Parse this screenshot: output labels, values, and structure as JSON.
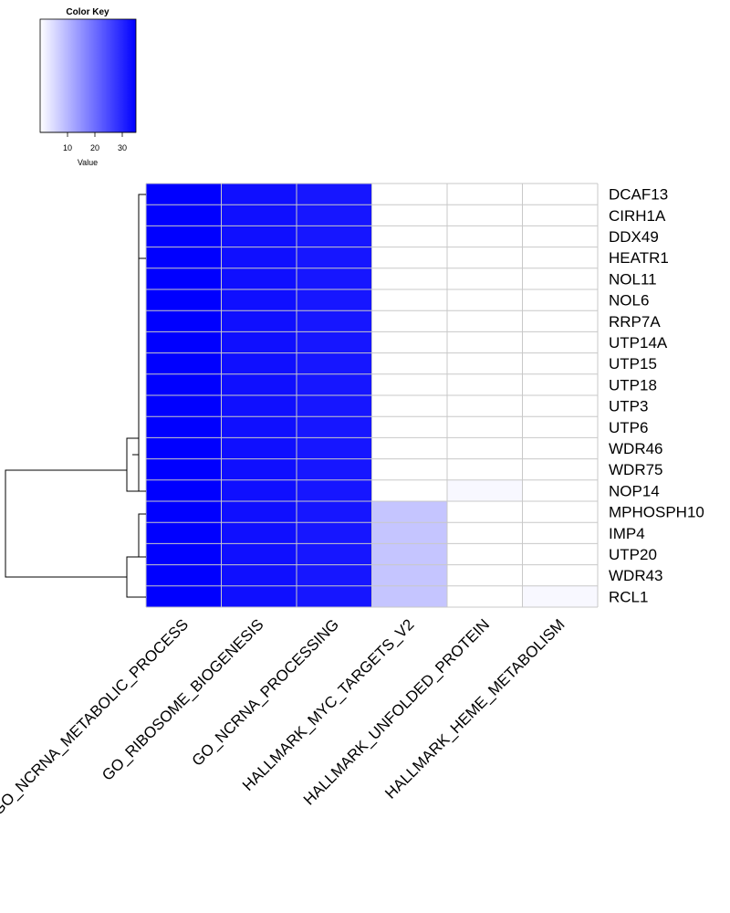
{
  "chart_data": {
    "type": "heatmap",
    "color_key": {
      "title": "Color Key",
      "xlabel": "Value",
      "ticks": [
        10,
        20,
        30
      ],
      "range": [
        0,
        35
      ],
      "low_color": "#ffffff",
      "high_color": "#0000ff"
    },
    "columns": [
      "GO_NCRNA_METABOLIC_PROCESS",
      "GO_RIBOSOME_BIOGENESIS",
      "GO_NCRNA_PROCESSING",
      "HALLMARK_MYC_TARGETS_V2",
      "HALLMARK_UNFOLDED_PROTEIN",
      "HALLMARK_HEME_METABOLISM"
    ],
    "rows": [
      "DCAF13",
      "CIRH1A",
      "DDX49",
      "HEATR1",
      "NOL11",
      "NOL6",
      "RRP7A",
      "UTP14A",
      "UTP15",
      "UTP18",
      "UTP3",
      "UTP6",
      "WDR46",
      "WDR75",
      "NOP14",
      "MPHOSPH10",
      "IMP4",
      "UTP20",
      "WDR43",
      "RCL1"
    ],
    "values": [
      [
        35,
        33,
        32,
        0,
        0,
        0
      ],
      [
        35,
        33,
        32,
        0,
        0,
        0
      ],
      [
        35,
        33,
        32,
        0,
        0,
        0
      ],
      [
        35,
        33,
        32,
        0,
        0,
        0
      ],
      [
        35,
        33,
        32,
        0,
        0,
        0
      ],
      [
        35,
        33,
        32,
        0,
        0,
        0
      ],
      [
        35,
        33,
        32,
        0,
        0,
        0
      ],
      [
        35,
        33,
        32,
        0,
        0,
        0
      ],
      [
        35,
        33,
        32,
        0,
        0,
        0
      ],
      [
        35,
        33,
        32,
        0,
        0,
        0
      ],
      [
        35,
        33,
        32,
        0,
        0,
        0
      ],
      [
        35,
        33,
        32,
        0,
        0,
        0
      ],
      [
        35,
        33,
        32,
        0,
        0,
        0
      ],
      [
        35,
        33,
        32,
        0,
        0,
        0
      ],
      [
        35,
        33,
        32,
        0,
        1,
        0
      ],
      [
        35,
        33,
        32,
        8,
        0,
        0
      ],
      [
        35,
        33,
        32,
        8,
        0,
        0
      ],
      [
        35,
        33,
        32,
        8,
        0,
        0
      ],
      [
        35,
        33,
        32,
        8,
        0,
        0
      ],
      [
        35,
        33,
        32,
        8,
        0,
        1
      ]
    ],
    "grid_color": "#c8c8c8",
    "row_dendrogram": true
  }
}
